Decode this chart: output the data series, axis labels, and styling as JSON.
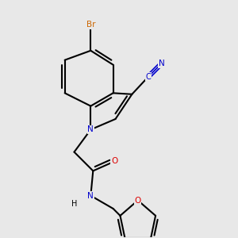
{
  "background_color": "#e8e8e8",
  "bond_color": "#000000",
  "figsize": [
    3.0,
    3.0
  ],
  "dpi": 100,
  "colors": {
    "N": "#0000cc",
    "O": "#dd0000",
    "Br": "#cc6600",
    "C": "#000000",
    "bond": "#000000"
  },
  "atom_labels": {
    "Br": "Br",
    "N_indole": "N",
    "C_cyano": "C",
    "N_cyano": "N",
    "O_amide": "O",
    "N_amide": "N",
    "H_amide": "H",
    "O_furan": "O"
  }
}
